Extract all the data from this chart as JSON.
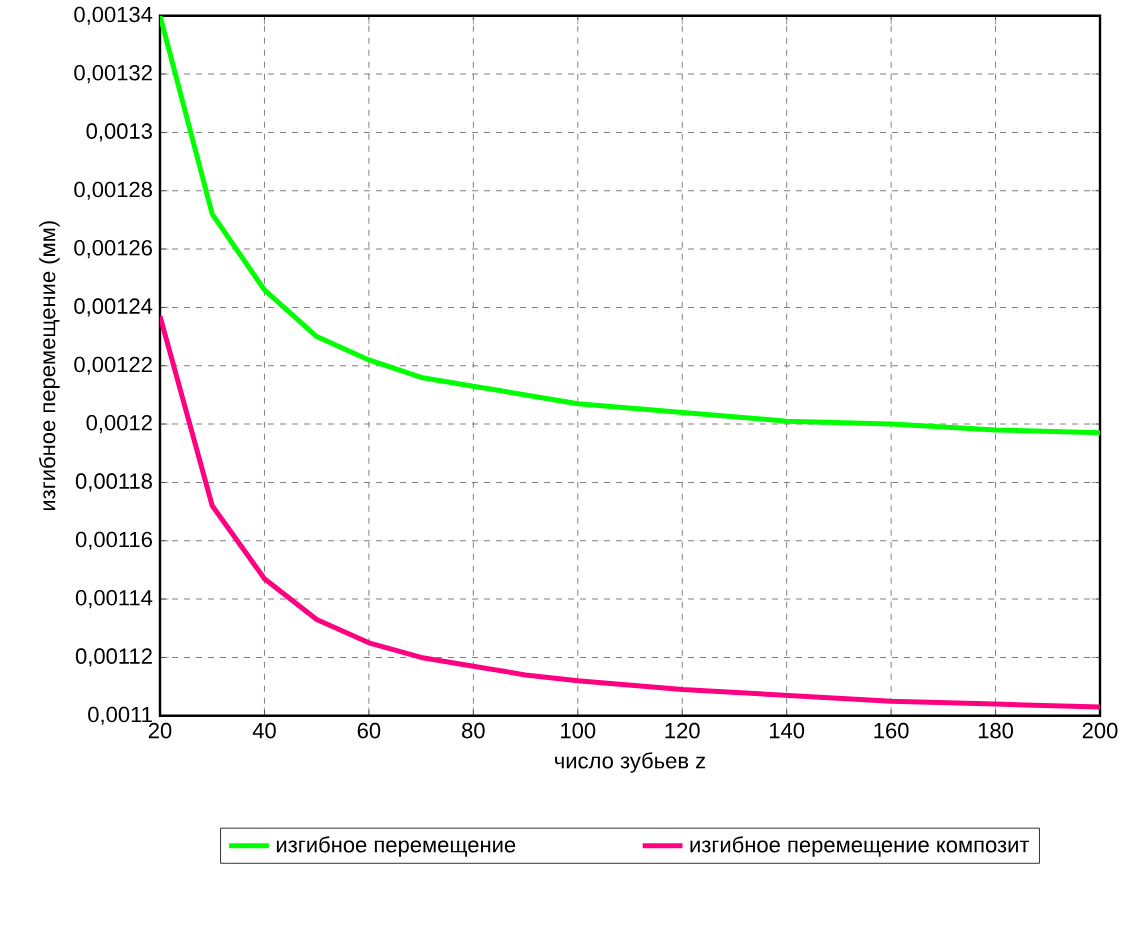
{
  "chart_data": {
    "type": "line",
    "xlabel": "число зубьев z",
    "ylabel": "изгибное перемещение (мм)",
    "x": [
      20,
      30,
      40,
      50,
      60,
      70,
      80,
      90,
      100,
      120,
      140,
      160,
      180,
      200
    ],
    "series": [
      {
        "name": "изгибное перемещение",
        "color": "#00ff00",
        "values": [
          0.00134,
          0.001272,
          0.001246,
          0.00123,
          0.001222,
          0.001216,
          0.001213,
          0.00121,
          0.001207,
          0.001204,
          0.001201,
          0.0012,
          0.001198,
          0.001197
        ]
      },
      {
        "name": "изгибное перемещение композит",
        "color": "#ff0080",
        "values": [
          0.001237,
          0.001172,
          0.001147,
          0.001133,
          0.001125,
          0.00112,
          0.001117,
          0.001114,
          0.001112,
          0.001109,
          0.001107,
          0.001105,
          0.001104,
          0.001103
        ]
      }
    ],
    "xlim": [
      20,
      200
    ],
    "xticks": [
      20,
      40,
      60,
      80,
      100,
      120,
      140,
      160,
      180,
      200
    ],
    "ylim": [
      0.0011,
      0.00134
    ],
    "yticks": [
      {
        "value": 0.0011,
        "label": "0,0011"
      },
      {
        "value": 0.00112,
        "label": "0,00112"
      },
      {
        "value": 0.00114,
        "label": "0,00114"
      },
      {
        "value": 0.00116,
        "label": "0,00116"
      },
      {
        "value": 0.00118,
        "label": "0,00118"
      },
      {
        "value": 0.0012,
        "label": "0,0012"
      },
      {
        "value": 0.00122,
        "label": "0,00122"
      },
      {
        "value": 0.00124,
        "label": "0,00124"
      },
      {
        "value": 0.00126,
        "label": "0,00126"
      },
      {
        "value": 0.00128,
        "label": "0,00128"
      },
      {
        "value": 0.0013,
        "label": "0,0013"
      },
      {
        "value": 0.00132,
        "label": "0,00132"
      },
      {
        "value": 0.00134,
        "label": "0,00134"
      }
    ],
    "grid": true,
    "legend": "bottom",
    "marker": "none",
    "line_style": "solid"
  }
}
